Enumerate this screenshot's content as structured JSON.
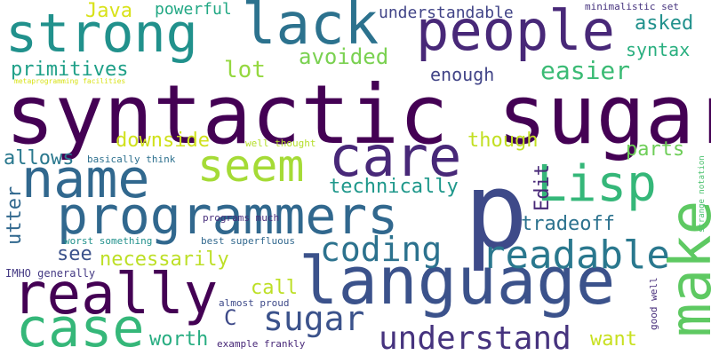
{
  "words": {
    "syntactic_sugar": {
      "text": "syntactic sugar",
      "color": "#440154"
    },
    "language": {
      "text": "language",
      "color": "#3b528b"
    },
    "programmers": {
      "text": "programmers",
      "color": "#31688e"
    },
    "p": {
      "text": "p",
      "color": "#3e4a89"
    },
    "really": {
      "text": "really",
      "color": "#440154"
    },
    "strong": {
      "text": "strong",
      "color": "#21918c"
    },
    "people": {
      "text": "people",
      "color": "#482878"
    },
    "case": {
      "text": "case",
      "color": "#35b779"
    },
    "name": {
      "text": "name",
      "color": "#31688e"
    },
    "lack": {
      "text": "lack",
      "color": "#2c728e"
    },
    "make": {
      "text": "make",
      "color": "#5ec962"
    },
    "seem": {
      "text": "seem",
      "color": "#a5db36"
    },
    "care": {
      "text": "care",
      "color": "#482878"
    },
    "lisp": {
      "text": "Lisp",
      "color": "#35b779"
    },
    "readable": {
      "text": "readable",
      "color": "#2a788e"
    },
    "understand": {
      "text": "understand",
      "color": "#46337e"
    },
    "coding": {
      "text": "coding",
      "color": "#2c728e"
    },
    "sugar_small": {
      "text": "sugar",
      "color": "#3b528b"
    },
    "easier": {
      "text": "easier",
      "color": "#3bbb75"
    },
    "primitives": {
      "text": "primitives",
      "color": "#1fa088"
    },
    "avoided": {
      "text": "avoided",
      "color": "#7ad151"
    },
    "asked": {
      "text": "asked",
      "color": "#21918c"
    },
    "syntax": {
      "text": "syntax",
      "color": "#29af7f"
    },
    "lot": {
      "text": "lot",
      "color": "#95d840"
    },
    "enough": {
      "text": "enough",
      "color": "#414487"
    },
    "java": {
      "text": "Java",
      "color": "#d8e219"
    },
    "powerful": {
      "text": "powerful",
      "color": "#22a884"
    },
    "understandable": {
      "text": "understandable",
      "color": "#414487"
    },
    "minimalistic_set": {
      "text": "minimalistic set",
      "color": "#46337e"
    },
    "downside": {
      "text": "downside",
      "color": "#d0e11c"
    },
    "though": {
      "text": "though",
      "color": "#c2df23"
    },
    "allows": {
      "text": "allows",
      "color": "#2a788e"
    },
    "technically": {
      "text": "technically",
      "color": "#1f988b"
    },
    "parts": {
      "text": "parts",
      "color": "#6ece58"
    },
    "tradeoff": {
      "text": "tradeoff",
      "color": "#2c728e"
    },
    "edit": {
      "text": "Edit",
      "color": "#482878"
    },
    "utter": {
      "text": "utter",
      "color": "#31688e"
    },
    "see": {
      "text": "see",
      "color": "#3b528b"
    },
    "necessarily": {
      "text": "necessarily",
      "color": "#bddf26"
    },
    "call": {
      "text": "call",
      "color": "#bddf26"
    },
    "c_lang": {
      "text": "C",
      "color": "#3e4a89"
    },
    "worth": {
      "text": "worth",
      "color": "#27ad81"
    },
    "want": {
      "text": "want",
      "color": "#c8e020"
    },
    "imho_generally": {
      "text": "IMHO generally",
      "color": "#443983"
    },
    "well_thought": {
      "text": "well thought",
      "color": "#b5de2b"
    },
    "basically_think": {
      "text": "basically think",
      "color": "#2d708e"
    },
    "programs_much": {
      "text": "programs much",
      "color": "#472d7b"
    },
    "worst_something": {
      "text": "worst something",
      "color": "#21918c"
    },
    "best_superfluous": {
      "text": "best superfluous",
      "color": "#31688e"
    },
    "metaprogramming_facilities": {
      "text": "metaprogramming facilities",
      "color": "#d8e219"
    },
    "strange_notation": {
      "text": "strange notation",
      "color": "#4ac16d"
    },
    "almost_proud": {
      "text": "almost proud",
      "color": "#3e4a89"
    },
    "example_frankly": {
      "text": "example frankly",
      "color": "#482878"
    },
    "good_well": {
      "text": "good well",
      "color": "#472d7b"
    }
  }
}
